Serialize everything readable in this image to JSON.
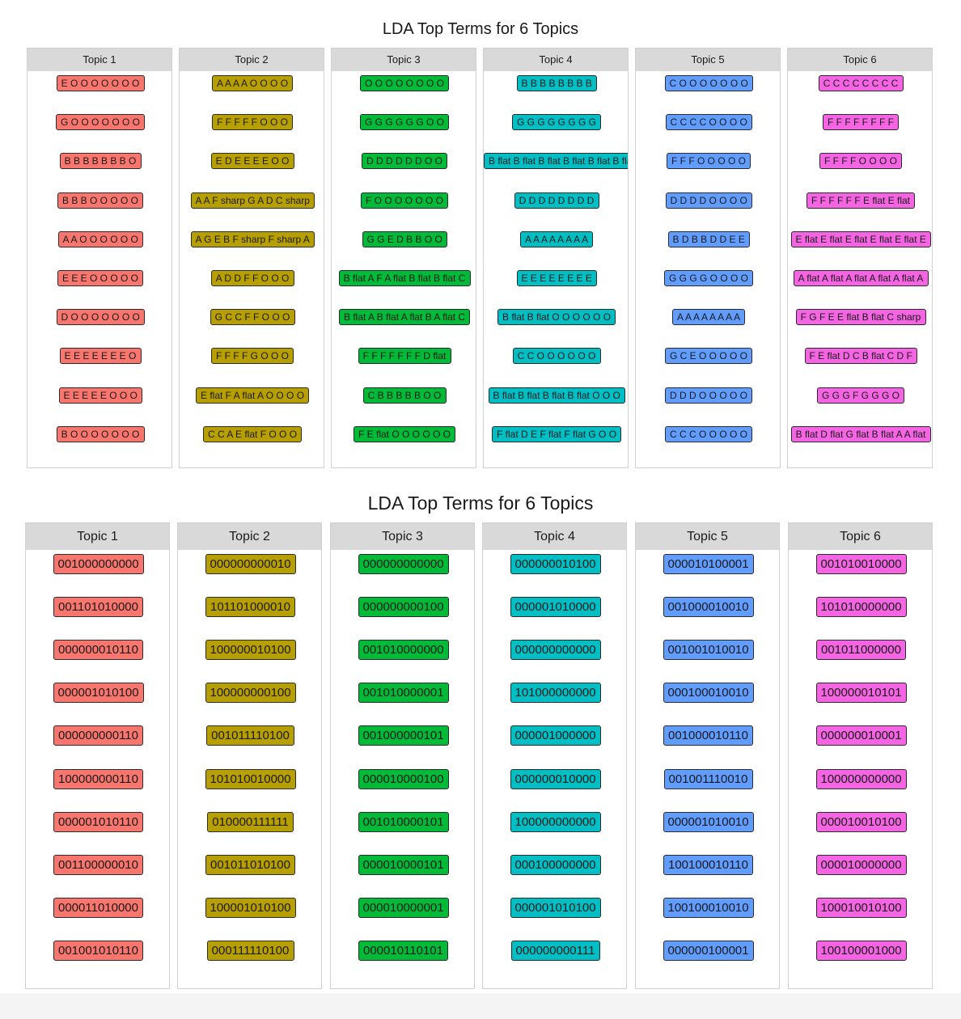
{
  "colors": {
    "topic_fills": [
      "#F8766D",
      "#B79F00",
      "#00BA38",
      "#00BFC4",
      "#619CFF",
      "#F564E3"
    ],
    "strip": "#d9d9d9",
    "panel_border": "#d0d0d0",
    "label_border": "#2b2b2b"
  },
  "chart_data": [
    {
      "type": "table",
      "title": "LDA Top Terms for 6 Topics",
      "facets": [
        {
          "topic": "Topic 1",
          "terms": [
            "E O O O O O O O",
            "G O O O O O O O",
            "B B B B B B B O",
            "B B B O O O O O",
            "A A O O O O O O",
            "E E E O O O O O",
            "D O O O O O O O",
            "E E E E E E E O",
            "E E E E E O O O",
            "B O O O O O O O"
          ]
        },
        {
          "topic": "Topic 2",
          "terms": [
            "A A A A O O O O",
            "F F F F F O O O",
            "E D E E E E O O",
            "A A F sharp G A D C sharp",
            "A G E B F sharp F sharp A",
            "A D D F F O O O",
            "G C C F F O O O",
            "F F F F G O O O",
            "E flat F A flat A O O O O",
            "C C A E flat F O O O"
          ]
        },
        {
          "topic": "Topic 3",
          "terms": [
            "O O O O O O O O",
            "G G G G G G O O",
            "D D D D D D O O",
            "F O O O O O O O",
            "G G E D B B O O",
            "B flat A F A flat B flat B flat C",
            "B flat A B flat A flat B A flat C",
            "F F F F F F F D flat",
            "C B B B B B O O",
            "F E flat O O O O O O"
          ]
        },
        {
          "topic": "Topic 4",
          "terms": [
            "B B B B B B B B",
            "G G G G G G G G",
            "B flat B flat B flat B flat B flat B flat B",
            "D D D D D D D D",
            "A A A A A A A A",
            "E E E E E E E E",
            "B flat B flat O O O O O O",
            "C C O O O O O O",
            "B flat B flat B flat B flat O O O",
            "F flat D E F flat F flat G O O"
          ]
        },
        {
          "topic": "Topic 5",
          "terms": [
            "C O O O O O O O",
            "C C C C O O O O",
            "F F F O O O O O",
            "D D D D O O O O",
            "B D B B D D E E",
            "G G G G O O O O",
            "A A A A A A A A",
            "G C E O O O O O",
            "D D D O O O O O",
            "C C C O O O O O"
          ]
        },
        {
          "topic": "Topic 6",
          "terms": [
            "C C C C C C C C",
            "F F F F F F F F",
            "F F F F O O O O",
            "F F F F F F E flat E flat",
            "E flat E flat E flat E flat E flat E",
            "A flat A flat A flat A flat A flat A",
            "F G F E E flat B flat C sharp",
            "F E flat D C B flat C D F",
            "G G G F G G G O",
            "B flat D flat G flat B flat A A flat"
          ]
        }
      ]
    },
    {
      "type": "table",
      "title": "LDA Top Terms for 6 Topics",
      "facets": [
        {
          "topic": "Topic 1",
          "terms": [
            "001000000000",
            "001101010000",
            "000000010110",
            "000001010100",
            "000000000110",
            "100000000110",
            "000001010110",
            "001100000010",
            "000011010000",
            "001001010110"
          ]
        },
        {
          "topic": "Topic 2",
          "terms": [
            "000000000010",
            "101101000010",
            "100000010100",
            "100000000100",
            "001011110100",
            "101010010000",
            "010000111111",
            "001011010100",
            "100001010100",
            "000111110100"
          ]
        },
        {
          "topic": "Topic 3",
          "terms": [
            "000000000000",
            "000000000100",
            "001010000000",
            "001010000001",
            "001000000101",
            "000010000100",
            "001010000101",
            "000010000101",
            "000010000001",
            "000010110101"
          ]
        },
        {
          "topic": "Topic 4",
          "terms": [
            "000000010100",
            "000001010000",
            "000000000000",
            "101000000000",
            "000001000000",
            "000000010000",
            "100000000000",
            "000100000000",
            "000001010100",
            "000000000111"
          ]
        },
        {
          "topic": "Topic 5",
          "terms": [
            "000010100001",
            "001000010010",
            "001001010010",
            "000100010010",
            "001000010110",
            "001001110010",
            "000001010010",
            "100100010110",
            "100100010010",
            "000000100001"
          ]
        },
        {
          "topic": "Topic 6",
          "terms": [
            "001010010000",
            "101010000000",
            "001011000000",
            "100000010101",
            "000000010001",
            "100000000000",
            "000010010100",
            "000010000000",
            "100010010100",
            "100100001000"
          ]
        }
      ]
    }
  ]
}
